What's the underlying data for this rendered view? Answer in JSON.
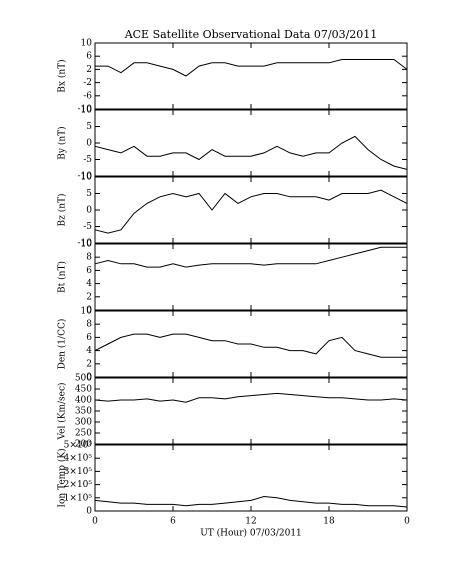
{
  "chart_data": [
    {
      "type": "line",
      "title": "ACE Satellite Observational Data  07/03/2011",
      "ylabel": "Bx (nT)",
      "color": "#000000",
      "x": [
        0,
        1,
        2,
        3,
        4,
        5,
        6,
        7,
        8,
        9,
        10,
        11,
        12,
        13,
        14,
        15,
        16,
        17,
        18,
        19,
        20,
        21,
        22,
        23,
        24
      ],
      "values": [
        3,
        3,
        1,
        4,
        4,
        3,
        2,
        0,
        3,
        4,
        4,
        3,
        3,
        3,
        4,
        4,
        4,
        4,
        4,
        5,
        5,
        5,
        5,
        5,
        2
      ],
      "xlim": [
        0,
        24
      ],
      "xticks": [
        0,
        6,
        12,
        18,
        24
      ],
      "ylim": [
        -10,
        10
      ],
      "yticks": [
        -10,
        -6,
        -2,
        2,
        6,
        10
      ]
    },
    {
      "type": "line",
      "ylabel": "By (nT)",
      "color": "#000000",
      "x": [
        0,
        1,
        2,
        3,
        4,
        5,
        6,
        7,
        8,
        9,
        10,
        11,
        12,
        13,
        14,
        15,
        16,
        17,
        18,
        19,
        20,
        21,
        22,
        23,
        24
      ],
      "values": [
        -1,
        -2,
        -3,
        -1,
        -4,
        -4,
        -3,
        -3,
        -5,
        -2,
        -4,
        -4,
        -4,
        -3,
        -1,
        -3,
        -4,
        -3,
        -3,
        0,
        2,
        -2,
        -5,
        -7,
        -8
      ],
      "xlim": [
        0,
        24
      ],
      "xticks": [
        0,
        6,
        12,
        18,
        24
      ],
      "ylim": [
        -10,
        10
      ],
      "yticks": [
        -10,
        -5,
        0,
        5,
        10
      ]
    },
    {
      "type": "line",
      "ylabel": "Bz (nT)",
      "color": "#000000",
      "x": [
        0,
        1,
        2,
        3,
        4,
        5,
        6,
        7,
        8,
        9,
        10,
        11,
        12,
        13,
        14,
        15,
        16,
        17,
        18,
        19,
        20,
        21,
        22,
        23,
        24
      ],
      "values": [
        -6,
        -7,
        -6,
        -1,
        2,
        4,
        5,
        4,
        5,
        0,
        5,
        2,
        4,
        5,
        5,
        4,
        4,
        4,
        3,
        5,
        5,
        5,
        6,
        4,
        2
      ],
      "xlim": [
        0,
        24
      ],
      "xticks": [
        0,
        6,
        12,
        18,
        24
      ],
      "ylim": [
        -10,
        10
      ],
      "yticks": [
        -10,
        -5,
        0,
        5,
        10
      ]
    },
    {
      "type": "line",
      "ylabel": "Bt (nT)",
      "color": "#000000",
      "x": [
        0,
        1,
        2,
        3,
        4,
        5,
        6,
        7,
        8,
        9,
        10,
        11,
        12,
        13,
        14,
        15,
        16,
        17,
        18,
        19,
        20,
        21,
        22,
        23,
        24
      ],
      "values": [
        7,
        7.5,
        7,
        7,
        6.5,
        6.5,
        7,
        6.5,
        6.8,
        7,
        7,
        7,
        7,
        6.8,
        7,
        7,
        7,
        7,
        7.5,
        8,
        8.5,
        9,
        9.5,
        9.5,
        9.5
      ],
      "xlim": [
        0,
        24
      ],
      "xticks": [
        0,
        6,
        12,
        18,
        24
      ],
      "ylim": [
        0,
        10
      ],
      "yticks": [
        0,
        2,
        4,
        6,
        8,
        10
      ]
    },
    {
      "type": "line",
      "ylabel": "Den (1/CC)",
      "color": "#000000",
      "x": [
        0,
        1,
        2,
        3,
        4,
        5,
        6,
        7,
        8,
        9,
        10,
        11,
        12,
        13,
        14,
        15,
        16,
        17,
        18,
        19,
        20,
        21,
        22,
        23,
        24
      ],
      "values": [
        4,
        5,
        6,
        6.5,
        6.5,
        6,
        6.5,
        6.5,
        6,
        5.5,
        5.5,
        5,
        5,
        4.5,
        4.5,
        4,
        4,
        3.5,
        5.5,
        6,
        4,
        3.5,
        3,
        3,
        3
      ],
      "xlim": [
        0,
        24
      ],
      "xticks": [
        0,
        6,
        12,
        18,
        24
      ],
      "ylim": [
        0,
        10
      ],
      "yticks": [
        0,
        2,
        4,
        6,
        8,
        10
      ]
    },
    {
      "type": "line",
      "ylabel": "Vel (Km/sec)",
      "color": "#000000",
      "x": [
        0,
        1,
        2,
        3,
        4,
        5,
        6,
        7,
        8,
        9,
        10,
        11,
        12,
        13,
        14,
        15,
        16,
        17,
        18,
        19,
        20,
        21,
        22,
        23,
        24
      ],
      "values": [
        400,
        395,
        400,
        400,
        405,
        395,
        400,
        390,
        410,
        410,
        405,
        415,
        420,
        425,
        430,
        425,
        420,
        415,
        410,
        410,
        405,
        400,
        400,
        405,
        400
      ],
      "xlim": [
        0,
        24
      ],
      "xticks": [
        0,
        6,
        12,
        18,
        24
      ],
      "ylim": [
        200,
        500
      ],
      "yticks": [
        200,
        250,
        300,
        350,
        400,
        450,
        500
      ]
    },
    {
      "type": "line",
      "ylabel": "Ion Temp (K)",
      "xlabel": "UT (Hour)  07/03/2011",
      "color": "#000000",
      "x": [
        0,
        1,
        2,
        3,
        4,
        5,
        6,
        7,
        8,
        9,
        10,
        11,
        12,
        13,
        14,
        15,
        16,
        17,
        18,
        19,
        20,
        21,
        22,
        23,
        24
      ],
      "values": [
        80000,
        70000,
        60000,
        60000,
        50000,
        50000,
        50000,
        40000,
        50000,
        50000,
        60000,
        70000,
        80000,
        110000,
        100000,
        80000,
        70000,
        60000,
        60000,
        50000,
        50000,
        40000,
        40000,
        40000,
        30000
      ],
      "xlim": [
        0,
        24
      ],
      "xticks": [
        0,
        6,
        12,
        18,
        {
          "value": 24,
          "label": "0"
        }
      ],
      "ylim": [
        0,
        500000
      ],
      "yticks": [
        0,
        {
          "value": 100000,
          "label": "1×10⁵"
        },
        {
          "value": 200000,
          "label": "2×10⁵"
        },
        {
          "value": 300000,
          "label": "3×10⁵"
        },
        {
          "value": 400000,
          "label": "4×10⁵"
        },
        {
          "value": 500000,
          "label": "5×10⁵"
        }
      ]
    }
  ]
}
